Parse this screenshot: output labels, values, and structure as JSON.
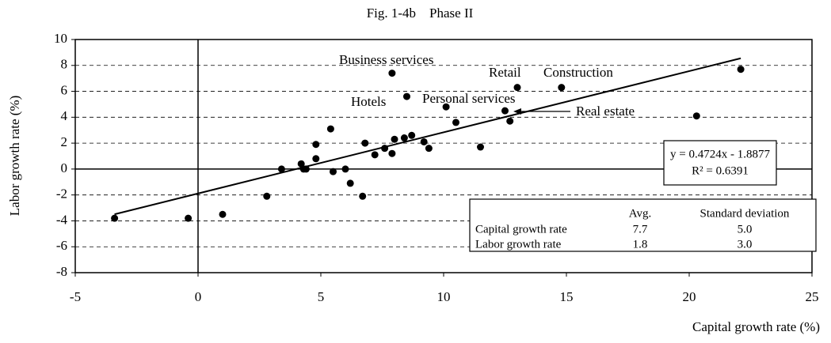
{
  "chart_data": {
    "type": "scatter",
    "title": "Fig. 1-4b　Phase II",
    "x_label": "Capital growth rate (%)",
    "y_label": "Labor growth rate (%)",
    "xlim": [
      -5,
      25
    ],
    "xticks": [
      -5,
      0,
      5,
      10,
      15,
      20,
      25
    ],
    "ylim": [
      -8,
      10
    ],
    "yticks": [
      -8,
      -6,
      -4,
      -2,
      0,
      2,
      4,
      6,
      8,
      10
    ],
    "grid": true,
    "color": "#000000",
    "x": [
      -3.4,
      -0.4,
      1.0,
      2.8,
      3.4,
      4.2,
      4.3,
      4.4,
      4.8,
      4.8,
      5.4,
      5.5,
      6.0,
      6.2,
      6.7,
      6.8,
      7.2,
      7.6,
      7.9,
      8.0,
      7.9,
      8.4,
      8.5,
      8.7,
      9.2,
      9.4,
      10.1,
      10.5,
      11.5,
      12.5,
      12.7,
      13.0,
      14.8,
      20.3,
      22.1
    ],
    "values": [
      -3.8,
      -3.8,
      -3.5,
      -2.1,
      0.0,
      0.4,
      0.0,
      0.0,
      1.9,
      0.8,
      3.1,
      -0.2,
      0.0,
      -1.1,
      -2.1,
      2.0,
      1.1,
      1.6,
      1.2,
      2.3,
      7.4,
      2.4,
      5.6,
      2.6,
      2.1,
      1.6,
      4.8,
      3.6,
      1.7,
      4.5,
      3.7,
      6.3,
      6.3,
      4.1,
      7.7
    ],
    "annotations": [
      "Business services",
      "Retail",
      "Construction",
      "Hotels",
      "Personal services",
      "Real estate"
    ],
    "trendline": {
      "slope": 0.4724,
      "intercept": -1.8877,
      "equation": "y = 0.4724x - 1.8877",
      "r2": "R² = 0.6391"
    },
    "stats_table": {
      "columns": [
        "Avg.",
        "Standard deviation"
      ],
      "rows": [
        {
          "label": "Capital growth rate",
          "values": [
            "7.7",
            "5.0"
          ]
        },
        {
          "label": "Labor growth rate",
          "values": [
            "1.8",
            "3.0"
          ]
        }
      ]
    }
  }
}
